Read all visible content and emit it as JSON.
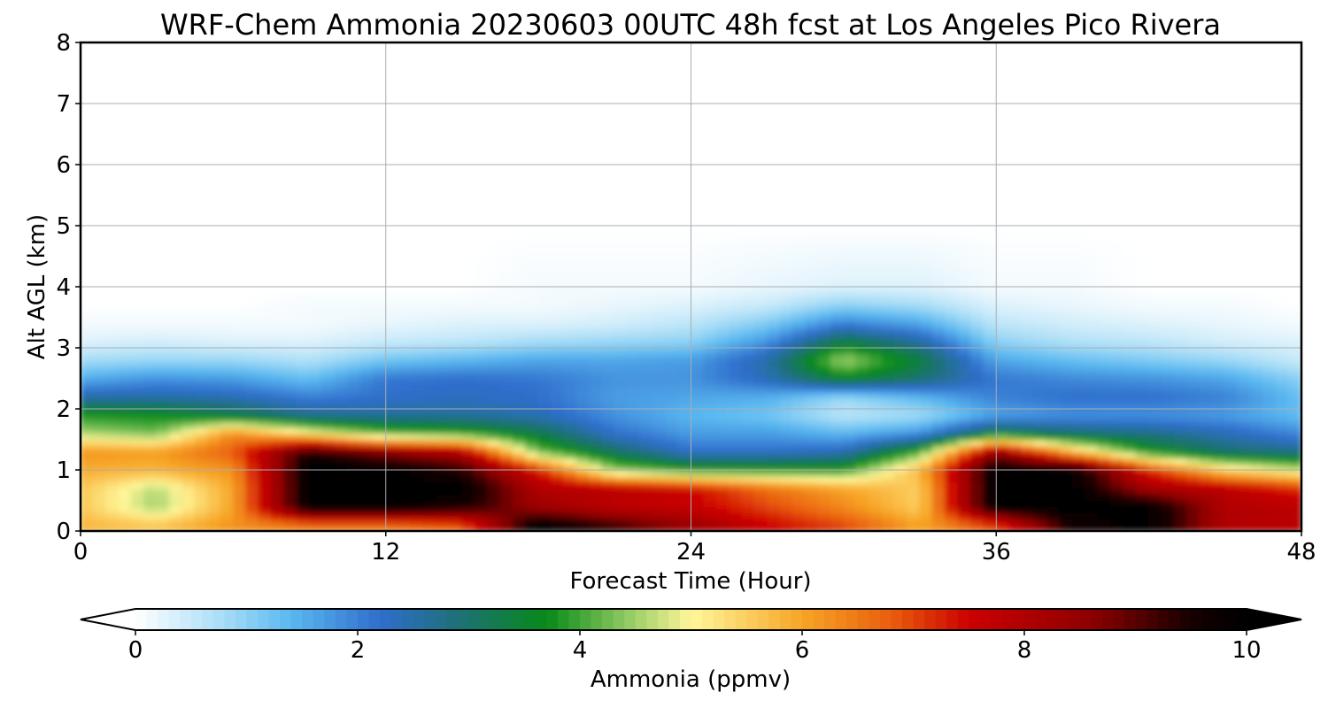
{
  "chart_data": {
    "type": "heatmap",
    "title": "WRF-Chem Ammonia  20230603 00UTC 48h fcst at Los Angeles Pico Rivera",
    "xlabel": "Forecast Time (Hour)",
    "ylabel": "Alt AGL (km)",
    "xlim": [
      0,
      48
    ],
    "ylim": [
      0,
      8
    ],
    "xticks": [
      "0",
      "12",
      "24",
      "36",
      "48"
    ],
    "yticks": [
      "0",
      "1",
      "2",
      "3",
      "4",
      "5",
      "6",
      "7",
      "8"
    ],
    "grid": true,
    "colorbar": {
      "label": "Ammonia  (ppmv)",
      "range": [
        0,
        10
      ],
      "ticks": [
        "0",
        "2",
        "4",
        "6",
        "8",
        "10"
      ],
      "extend": "both",
      "stops": [
        {
          "v": 0,
          "color": "#ffffff"
        },
        {
          "v": 0.8,
          "color": "#a6dcf6"
        },
        {
          "v": 1.4,
          "color": "#5ab8f0"
        },
        {
          "v": 2.2,
          "color": "#2f6ecc"
        },
        {
          "v": 2.9,
          "color": "#1e7078"
        },
        {
          "v": 3.7,
          "color": "#078a18"
        },
        {
          "v": 4.4,
          "color": "#8cc860"
        },
        {
          "v": 5.0,
          "color": "#fff79a"
        },
        {
          "v": 6.0,
          "color": "#f7a526"
        },
        {
          "v": 6.8,
          "color": "#e95e0d"
        },
        {
          "v": 7.5,
          "color": "#cc0000"
        },
        {
          "v": 8.6,
          "color": "#8e0000"
        },
        {
          "v": 9.5,
          "color": "#160000"
        },
        {
          "v": 10,
          "color": "#000000"
        }
      ]
    },
    "times": [
      0,
      3,
      6,
      9,
      12,
      15,
      18,
      21,
      24,
      27,
      30,
      33,
      36,
      39,
      42,
      45,
      48
    ],
    "levels_km": [
      0.1,
      0.4,
      0.7,
      1.0,
      1.3,
      1.6,
      1.9,
      2.2,
      2.5,
      2.8,
      3.1,
      3.4,
      3.7,
      4.0,
      5.0,
      6.0,
      7.0,
      8.0
    ],
    "values": [
      [
        5.8,
        5.6,
        6.2,
        6.5,
        6.5,
        6.8,
        10,
        9.2,
        8.4,
        7.5,
        7.0,
        6.0,
        7.0,
        9.6,
        10,
        8.0,
        7.8
      ],
      [
        5.6,
        4.5,
        6.0,
        10,
        10,
        9.6,
        8.3,
        7.8,
        7.6,
        7.0,
        6.3,
        5.5,
        10,
        10,
        10,
        8.0,
        7.8
      ],
      [
        5.6,
        4.6,
        6.0,
        10,
        10,
        10,
        8.0,
        7.8,
        7.5,
        6.6,
        6.0,
        5.5,
        10,
        10,
        8.2,
        7.8,
        7.2
      ],
      [
        5.9,
        5.8,
        6.2,
        10,
        10,
        9.4,
        7.3,
        4.5,
        3.9,
        3.9,
        3.9,
        5.8,
        10,
        10,
        7.2,
        5.5,
        4.8
      ],
      [
        6.2,
        6.1,
        6.8,
        9.5,
        8.6,
        8.0,
        4.3,
        3.1,
        2.2,
        2.2,
        2.4,
        4.1,
        8.5,
        5.8,
        3.8,
        3.0,
        2.8
      ],
      [
        4.6,
        4.3,
        6.3,
        5.2,
        4.2,
        4.0,
        3.3,
        2.2,
        1.7,
        1.7,
        1.4,
        1.8,
        3.5,
        3.0,
        2.8,
        2.4,
        1.9
      ],
      [
        3.8,
        3.7,
        3.3,
        2.7,
        2.6,
        2.6,
        2.4,
        1.8,
        1.4,
        1.2,
        0.6,
        0.8,
        1.6,
        1.8,
        1.8,
        1.7,
        1.3
      ],
      [
        2.5,
        2.5,
        2.4,
        2.0,
        2.2,
        2.3,
        2.2,
        1.7,
        1.6,
        1.5,
        0.9,
        1.4,
        2.0,
        2.2,
        2.2,
        2.0,
        1.3
      ],
      [
        1.5,
        1.8,
        1.7,
        1.3,
        2.1,
        2.2,
        2.1,
        1.8,
        1.8,
        2.4,
        3.6,
        3.0,
        2.1,
        1.9,
        1.8,
        1.6,
        1.0
      ],
      [
        0.8,
        0.9,
        0.9,
        0.7,
        1.2,
        1.4,
        1.6,
        1.6,
        1.7,
        2.5,
        4.6,
        3.4,
        1.6,
        1.3,
        1.1,
        0.9,
        0.5
      ],
      [
        0.3,
        0.4,
        0.3,
        0.3,
        0.5,
        0.6,
        0.8,
        0.9,
        1.0,
        1.8,
        3.4,
        2.6,
        1.0,
        0.7,
        0.6,
        0.4,
        0.3
      ],
      [
        0.1,
        0.1,
        0.1,
        0.1,
        0.2,
        0.3,
        0.3,
        0.4,
        0.6,
        1.1,
        2.0,
        1.6,
        0.6,
        0.4,
        0.3,
        0.2,
        0.1
      ],
      [
        0.0,
        0.0,
        0.0,
        0.1,
        0.1,
        0.1,
        0.1,
        0.2,
        0.3,
        0.5,
        1.0,
        0.8,
        0.3,
        0.2,
        0.1,
        0.1,
        0.0
      ],
      [
        0.0,
        0.0,
        0.0,
        0.0,
        0.0,
        0.0,
        0.1,
        0.1,
        0.1,
        0.2,
        0.3,
        0.3,
        0.1,
        0.1,
        0.0,
        0.0,
        0.0
      ],
      [
        0.0,
        0.0,
        0.0,
        0.0,
        0.0,
        0.0,
        0.0,
        0.0,
        0.0,
        0.0,
        0.0,
        0.0,
        0.0,
        0.0,
        0.0,
        0.0,
        0.0
      ],
      [
        0.0,
        0.0,
        0.0,
        0.0,
        0.0,
        0.0,
        0.0,
        0.0,
        0.0,
        0.0,
        0.0,
        0.0,
        0.0,
        0.0,
        0.0,
        0.0,
        0.0
      ],
      [
        0.0,
        0.0,
        0.0,
        0.0,
        0.0,
        0.0,
        0.0,
        0.0,
        0.0,
        0.0,
        0.0,
        0.0,
        0.0,
        0.0,
        0.0,
        0.0,
        0.0
      ],
      [
        0.0,
        0.0,
        0.0,
        0.0,
        0.0,
        0.0,
        0.0,
        0.0,
        0.0,
        0.0,
        0.0,
        0.0,
        0.0,
        0.0,
        0.0,
        0.0,
        0.0
      ]
    ]
  }
}
